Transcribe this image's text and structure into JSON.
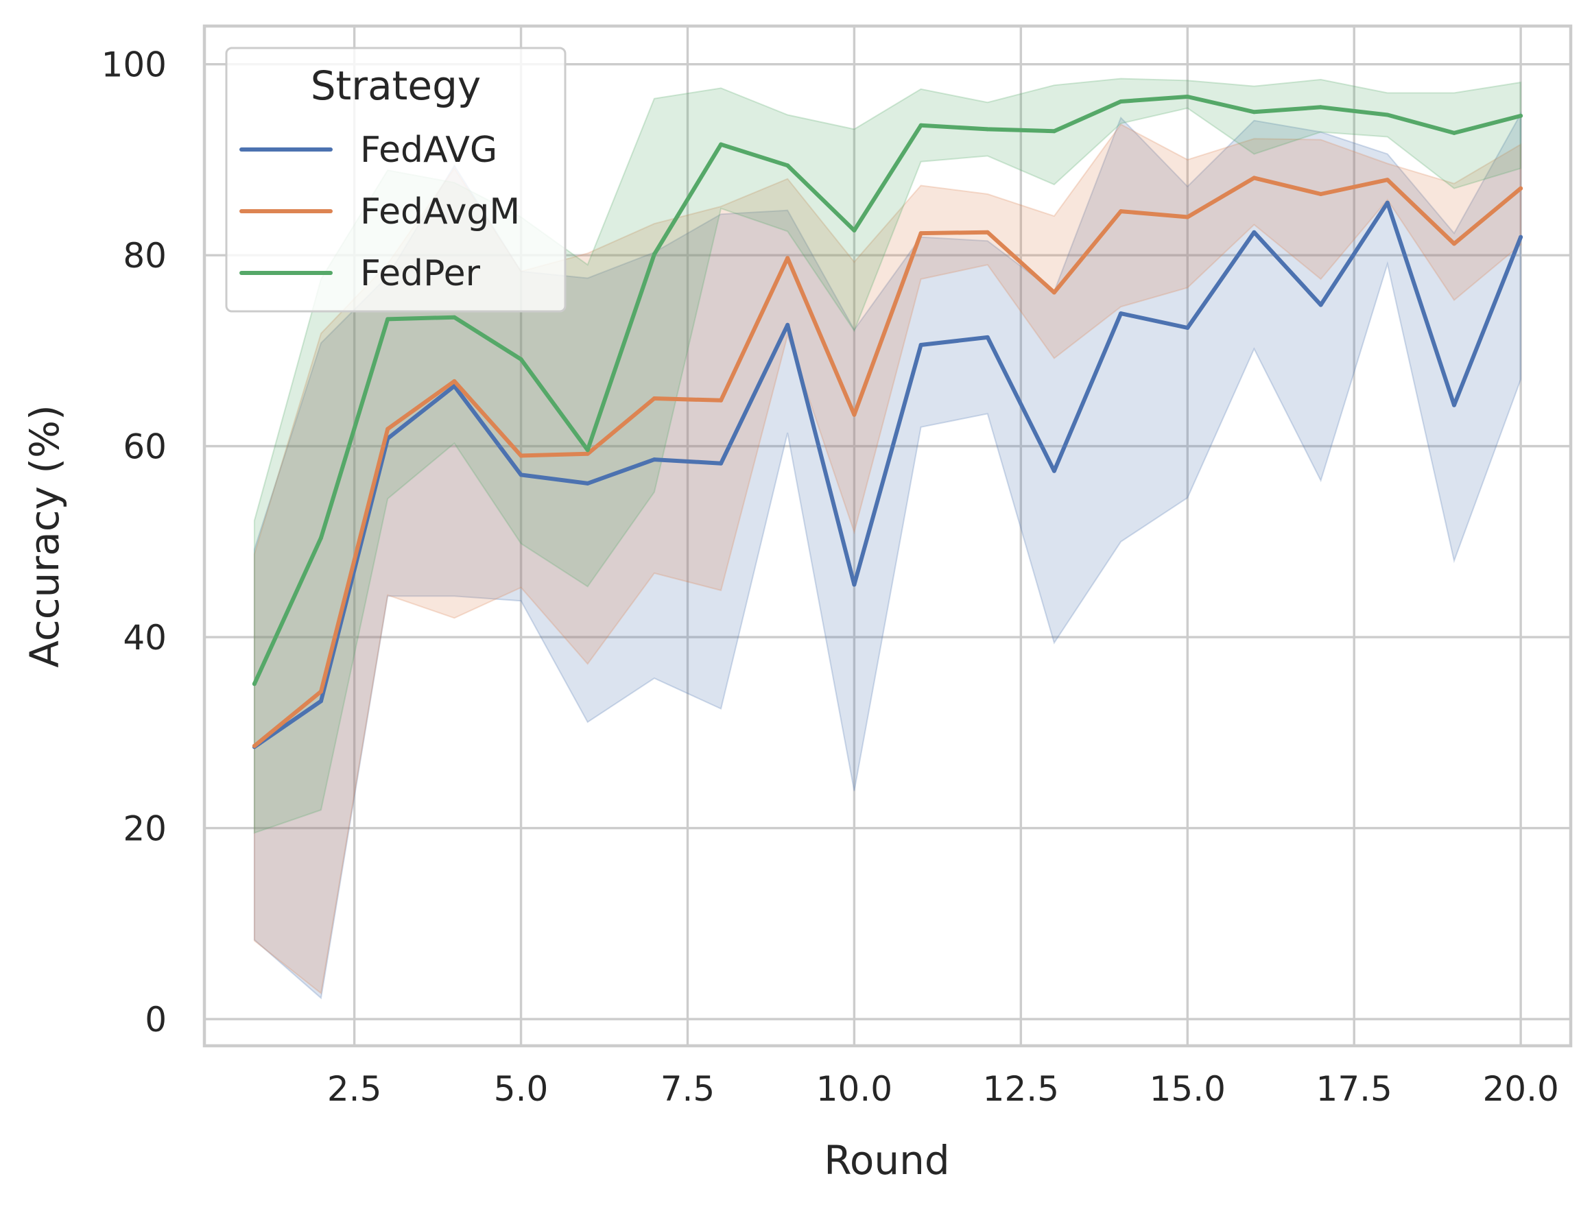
{
  "chart_data": {
    "type": "line",
    "title": "",
    "xlabel": "Round",
    "ylabel": "Accuracy (%)",
    "xlim": [
      0.25,
      20.75
    ],
    "ylim": [
      -2.8,
      104
    ],
    "xticks": [
      2.5,
      5.0,
      7.5,
      10.0,
      12.5,
      15.0,
      17.5,
      20.0
    ],
    "xtick_labels": [
      "2.5",
      "5.0",
      "7.5",
      "10.0",
      "12.5",
      "15.0",
      "17.5",
      "20.0"
    ],
    "yticks": [
      0,
      20,
      40,
      60,
      80,
      100
    ],
    "ytick_labels": [
      "0",
      "20",
      "40",
      "60",
      "80",
      "100"
    ],
    "grid": true,
    "legend": {
      "title": "Strategy",
      "position": "top-left"
    },
    "x": [
      1,
      2,
      3,
      4,
      5,
      6,
      7,
      8,
      9,
      10,
      11,
      12,
      13,
      14,
      15,
      16,
      17,
      18,
      19,
      20
    ],
    "series": [
      {
        "name": "FedAVG",
        "color": "#4c72b0",
        "values": [
          28.5,
          33.3,
          60.8,
          66.3,
          57.0,
          56.1,
          58.6,
          58.2,
          72.7,
          45.5,
          70.6,
          71.4,
          57.4,
          73.9,
          72.4,
          82.4,
          74.8,
          85.5,
          64.3,
          81.9
        ],
        "ci_lower": [
          8.3,
          2.2,
          44.3,
          44.3,
          43.8,
          31.1,
          35.7,
          32.5,
          61.4,
          23.9,
          62.0,
          63.4,
          39.4,
          50.0,
          54.6,
          70.2,
          56.4,
          79.1,
          48.0,
          67.0
        ],
        "ci_upper": [
          49.2,
          70.8,
          77.8,
          89.4,
          78.3,
          77.6,
          80.3,
          84.3,
          84.7,
          72.2,
          81.9,
          81.5,
          76.2,
          94.4,
          87.2,
          94.1,
          92.9,
          90.6,
          82.3,
          94.8
        ]
      },
      {
        "name": "FedAvgM",
        "color": "#dd8452",
        "values": [
          28.6,
          34.3,
          61.8,
          66.8,
          59.0,
          59.2,
          65.0,
          64.8,
          79.7,
          63.3,
          82.3,
          82.4,
          76.1,
          84.6,
          84.0,
          88.1,
          86.4,
          87.9,
          81.2,
          87.0
        ],
        "ci_lower": [
          8.2,
          2.7,
          44.4,
          42.0,
          45.2,
          37.2,
          46.7,
          44.9,
          71.6,
          51.0,
          77.5,
          79.0,
          69.2,
          74.6,
          76.6,
          83.2,
          77.5,
          85.8,
          75.3,
          81.1
        ],
        "ci_upper": [
          48.7,
          71.8,
          79.1,
          89.1,
          78.3,
          80.2,
          83.3,
          85.1,
          88.0,
          79.3,
          87.3,
          86.4,
          84.1,
          93.7,
          90.0,
          92.2,
          92.1,
          89.6,
          87.5,
          91.6
        ]
      },
      {
        "name": "FedPer",
        "color": "#55a868",
        "values": [
          35.1,
          50.4,
          73.3,
          73.5,
          69.1,
          59.6,
          80.1,
          91.6,
          89.4,
          82.6,
          93.6,
          93.2,
          93.0,
          96.1,
          96.6,
          95.0,
          95.5,
          94.7,
          92.8,
          94.6
        ],
        "ci_lower": [
          19.5,
          21.9,
          54.5,
          60.3,
          49.8,
          45.3,
          55.2,
          84.9,
          82.5,
          72.1,
          89.8,
          90.4,
          87.4,
          93.8,
          95.4,
          90.6,
          92.9,
          92.4,
          87.0,
          89.1
        ],
        "ci_upper": [
          52.2,
          77.5,
          88.9,
          87.6,
          84.0,
          79.0,
          96.4,
          97.5,
          94.7,
          93.2,
          97.4,
          96.0,
          97.8,
          98.5,
          98.3,
          97.7,
          98.4,
          97.0,
          97.0,
          98.1
        ]
      }
    ]
  }
}
